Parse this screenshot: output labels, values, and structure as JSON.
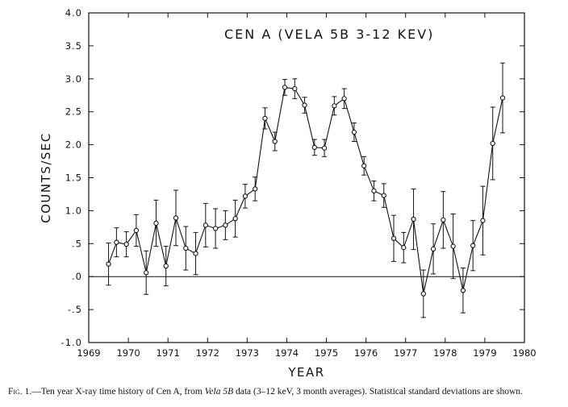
{
  "chart_data": {
    "type": "line",
    "title": "CEN A (VELA 5B 3-12 KEV)",
    "xlabel": "YEAR",
    "ylabel": "COUNTS/SEC",
    "xlim": [
      1969,
      1980
    ],
    "ylim": [
      -1.0,
      4.0
    ],
    "x_ticks": [
      1969,
      1970,
      1971,
      1972,
      1973,
      1974,
      1975,
      1976,
      1977,
      1978,
      1979,
      1980
    ],
    "x_tick_labels": [
      "1969",
      "1970",
      "1971",
      "1972",
      "1973",
      "1974",
      "1975",
      "1976",
      "1977",
      "1978",
      "1979",
      "1980"
    ],
    "y_ticks": [
      -1.0,
      -0.5,
      0.0,
      0.5,
      1.0,
      1.5,
      2.0,
      2.5,
      3.0,
      3.5,
      4.0
    ],
    "y_tick_labels": [
      "-1.0",
      "-.5",
      ".0",
      ".5",
      "1.0",
      "1.5",
      "2.0",
      "2.5",
      "3.0",
      "3.5",
      "4.0"
    ],
    "grid": false,
    "reference_line_y": 0.0,
    "series": [
      {
        "x": [
          1969.5,
          1969.7,
          1969.95,
          1970.2,
          1970.45,
          1970.7,
          1970.95,
          1971.2,
          1971.45,
          1971.7,
          1971.95,
          1972.2,
          1972.45,
          1972.7,
          1972.95,
          1973.2,
          1973.45,
          1973.7,
          1973.95,
          1974.2,
          1974.45,
          1974.7,
          1974.95,
          1975.2,
          1975.45,
          1975.7,
          1975.95,
          1976.2,
          1976.45,
          1976.7,
          1976.95,
          1977.2,
          1977.45,
          1977.7,
          1977.95,
          1978.2,
          1978.45,
          1978.7,
          1978.95,
          1979.2,
          1979.45
        ],
        "y": [
          0.19,
          0.52,
          0.49,
          0.7,
          0.06,
          0.81,
          0.16,
          0.89,
          0.43,
          0.35,
          0.78,
          0.73,
          0.78,
          0.88,
          1.22,
          1.33,
          2.4,
          2.05,
          2.87,
          2.85,
          2.6,
          1.96,
          1.95,
          2.59,
          2.7,
          2.19,
          1.68,
          1.3,
          1.23,
          0.58,
          0.44,
          0.87,
          -0.26,
          0.42,
          0.86,
          0.46,
          -0.21,
          0.47,
          0.85,
          2.02,
          2.71
        ],
        "err": [
          0.32,
          0.22,
          0.19,
          0.24,
          0.33,
          0.35,
          0.3,
          0.42,
          0.33,
          0.32,
          0.33,
          0.3,
          0.22,
          0.28,
          0.18,
          0.18,
          0.16,
          0.14,
          0.12,
          0.15,
          0.12,
          0.12,
          0.13,
          0.14,
          0.15,
          0.14,
          0.14,
          0.15,
          0.18,
          0.35,
          0.23,
          0.46,
          0.36,
          0.38,
          0.43,
          0.49,
          0.34,
          0.38,
          0.52,
          0.55,
          0.53
        ]
      }
    ]
  },
  "caption": {
    "fig_label": "Fig. 1.",
    "text_before": "—Ten year X-ray time history of Cen A, from ",
    "italic": "Vela 5B",
    "text_after": " data (3–12 keV, 3 month averages). Statistical standard deviations are shown."
  }
}
